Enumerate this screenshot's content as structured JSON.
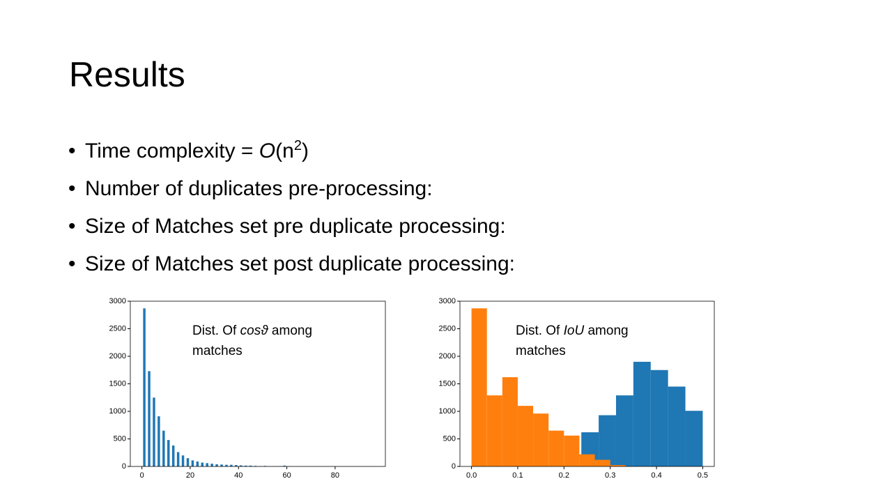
{
  "slide": {
    "title": "Results",
    "bullets": [
      [
        "Time complexity = ",
        "O",
        "(n",
        "2",
        ")"
      ],
      "Number of duplicates pre-processing:",
      "Size of Matches set pre duplicate processing:",
      "Size of Matches set post duplicate processing:"
    ]
  },
  "chart_data": [
    {
      "type": "histogram",
      "color": "#1f77b4",
      "rwidth": 0.5,
      "annotation": [
        [
          "Dist. Of ",
          "cosϑ",
          " among"
        ],
        [
          "matches"
        ]
      ],
      "bins": [
        0,
        2,
        4,
        6,
        8,
        10,
        12,
        14,
        16,
        18,
        20,
        22,
        24,
        26,
        28,
        30,
        32,
        34,
        36,
        38,
        40,
        42,
        44,
        46,
        48,
        50,
        52,
        54,
        56,
        58,
        60,
        62,
        64,
        66,
        68,
        70,
        72,
        74,
        76,
        78,
        80,
        82,
        84,
        86,
        88,
        90,
        92,
        94,
        96
      ],
      "values": [
        2870,
        1730,
        1250,
        910,
        650,
        480,
        380,
        260,
        200,
        150,
        110,
        90,
        70,
        60,
        50,
        40,
        35,
        30,
        30,
        25,
        20,
        15,
        15,
        10,
        5,
        10,
        3,
        3,
        5,
        15,
        5,
        0,
        0,
        0,
        0,
        0,
        0,
        0,
        0,
        0,
        0,
        0,
        0,
        0,
        0,
        0,
        0,
        2
      ],
      "xlim": [
        -4.8,
        100.8
      ],
      "xticks": [
        0,
        20,
        40,
        60,
        80
      ],
      "ylim": [
        0,
        3000
      ],
      "yticks": [
        0,
        500,
        1000,
        1500,
        2000,
        2500,
        3000
      ]
    },
    {
      "type": "histogram",
      "annotation": [
        [
          "Dist. Of ",
          "IoU",
          " among"
        ],
        [
          "matches"
        ]
      ],
      "series": [
        {
          "color": "#1f77b4",
          "bins": [
            0.2375,
            0.275,
            0.3125,
            0.35,
            0.3875,
            0.425,
            0.4625,
            0.5
          ],
          "values": [
            620,
            930,
            1290,
            1900,
            1750,
            1450,
            1010
          ]
        },
        {
          "color": "#ff7f0e",
          "bins": [
            0,
            0.0333,
            0.0667,
            0.1,
            0.1333,
            0.1667,
            0.2,
            0.2333,
            0.2667,
            0.3,
            0.3333
          ],
          "values": [
            2870,
            1290,
            1620,
            1100,
            960,
            650,
            560,
            220,
            120,
            25
          ]
        }
      ],
      "xlim": [
        -0.025,
        0.525
      ],
      "xticks": [
        {
          "value": 0,
          "label": "0.0"
        },
        0.1,
        0.2,
        0.3,
        0.4,
        0.5
      ],
      "ylim": [
        0,
        3000
      ],
      "yticks": [
        0,
        500,
        1000,
        1500,
        2000,
        2500,
        3000
      ]
    }
  ]
}
